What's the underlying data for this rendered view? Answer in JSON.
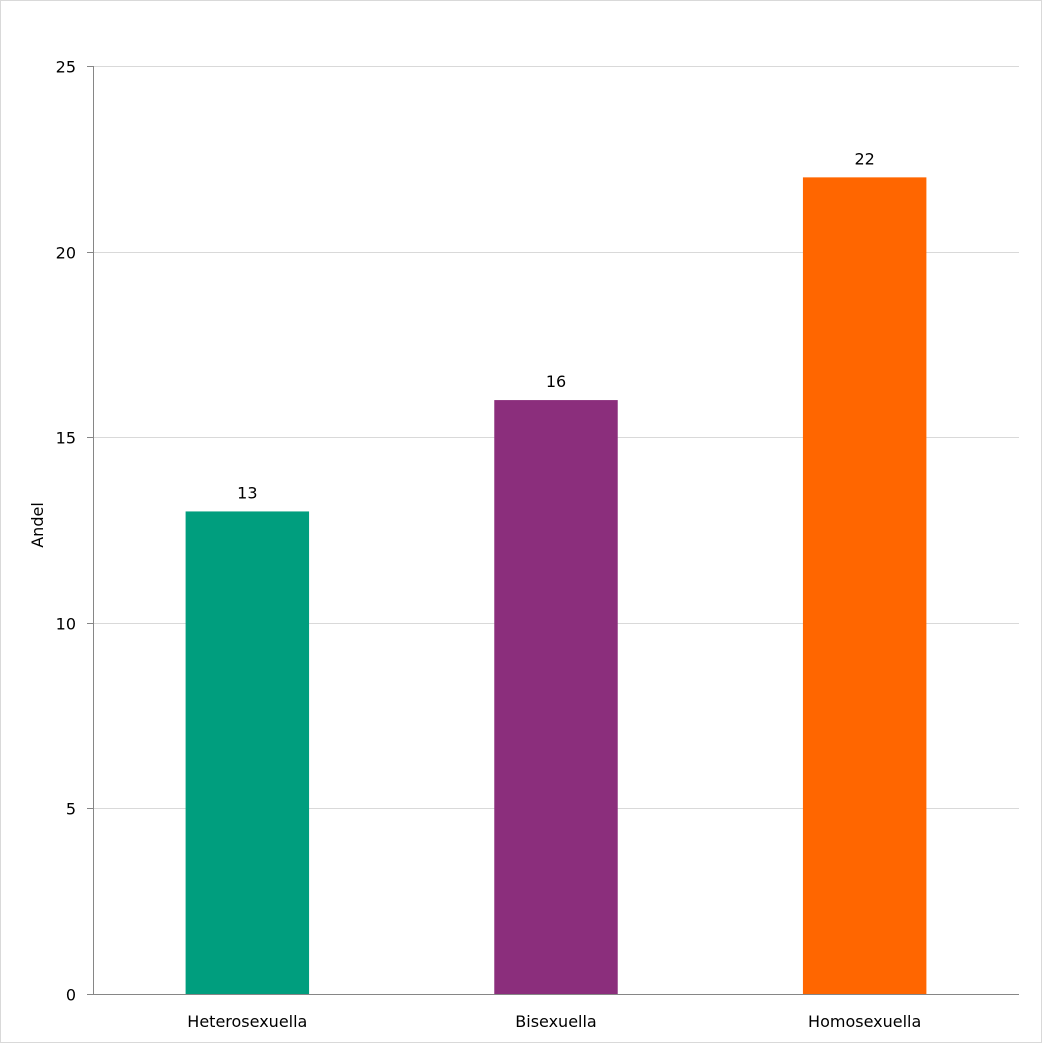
{
  "chart_data": {
    "type": "bar",
    "title": "",
    "xlabel": "",
    "ylabel": "Andel",
    "categories": [
      "Heterosexuella",
      "Bisexuella",
      "Homosexuella"
    ],
    "values": [
      13,
      16,
      22
    ],
    "data_labels": [
      "13",
      "16",
      "22"
    ],
    "colors": [
      "#009e7e",
      "#8b2e7c",
      "#ff6600"
    ],
    "ylim": [
      0,
      25
    ],
    "yticks": [
      0,
      5,
      10,
      15,
      20,
      25
    ],
    "ytick_labels": [
      "0",
      "5",
      "10",
      "15",
      "20",
      "25"
    ],
    "grid": true,
    "legend": "none"
  }
}
